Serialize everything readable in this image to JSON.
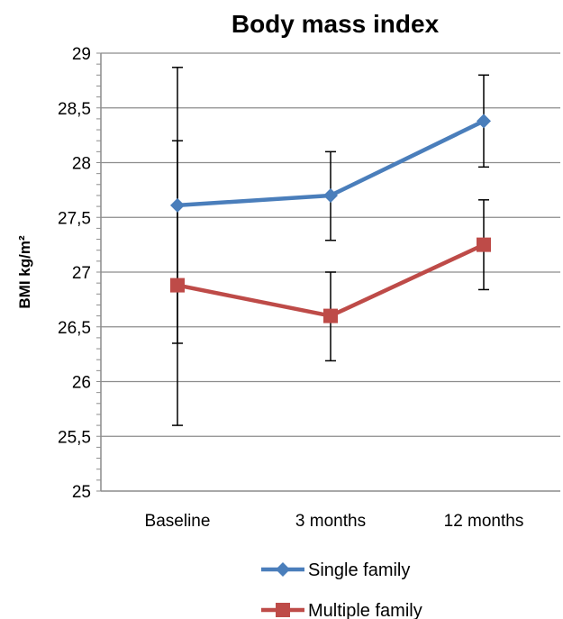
{
  "chart_data": {
    "type": "line",
    "title": "Body mass index",
    "ylabel": "BMI kg/m²",
    "xlabel": "",
    "categories": [
      "Baseline",
      "3 months",
      "12 months"
    ],
    "ylim": [
      25,
      29
    ],
    "y_ticks": [
      "25",
      "25,5",
      "26",
      "26,5",
      "27",
      "27,5",
      "28",
      "28,5",
      "29"
    ],
    "grid": true,
    "legend_position": "bottom",
    "series": [
      {
        "name": "Single family",
        "color": "#4a7ebb",
        "marker": "diamond",
        "values": [
          27.61,
          27.7,
          28.38
        ],
        "error_low": [
          26.35,
          27.29,
          27.96
        ],
        "error_high": [
          28.87,
          28.1,
          28.8
        ]
      },
      {
        "name": "Multiple family",
        "color": "#be4b48",
        "marker": "square",
        "values": [
          26.88,
          26.6,
          27.25
        ],
        "error_low": [
          25.6,
          26.19,
          26.84
        ],
        "error_high": [
          28.2,
          27.0,
          27.66
        ]
      }
    ]
  }
}
